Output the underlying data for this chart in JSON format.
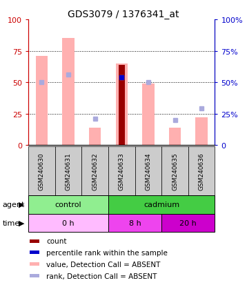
{
  "title": "GDS3079 / 1376341_at",
  "samples": [
    "GSM240630",
    "GSM240631",
    "GSM240632",
    "GSM240633",
    "GSM240634",
    "GSM240635",
    "GSM240636"
  ],
  "pink_bar_values": [
    71,
    85,
    14,
    65,
    49,
    14,
    22
  ],
  "light_blue_rank": [
    50,
    56,
    21,
    54,
    50,
    20,
    29
  ],
  "dark_red_count": [
    null,
    null,
    null,
    64,
    null,
    null,
    null
  ],
  "blue_percentile": [
    null,
    null,
    null,
    54,
    null,
    null,
    null
  ],
  "ylim": [
    0,
    100
  ],
  "yticks": [
    0,
    25,
    50,
    75,
    100
  ],
  "agent_groups": [
    {
      "label": "control",
      "start": 0,
      "end": 3,
      "color": "#90ee90"
    },
    {
      "label": "cadmium",
      "start": 3,
      "end": 7,
      "color": "#44cc44"
    }
  ],
  "time_groups": [
    {
      "label": "0 h",
      "start": 0,
      "end": 3,
      "color": "#ffbbff"
    },
    {
      "label": "8 h",
      "start": 3,
      "end": 5,
      "color": "#ee44ee"
    },
    {
      "label": "20 h",
      "start": 5,
      "end": 7,
      "color": "#cc00cc"
    }
  ],
  "color_pink_bar": "#ffb0b0",
  "color_light_blue": "#aaaadd",
  "color_dark_red": "#990000",
  "color_blue": "#0000cc",
  "left_axis_color": "#cc0000",
  "right_axis_color": "#0000cc",
  "bg_color": "#ffffff",
  "plot_bg_color": "#ffffff",
  "xticklabel_bg": "#cccccc",
  "legend_items": [
    {
      "color": "#990000",
      "label": "count"
    },
    {
      "color": "#0000cc",
      "label": "percentile rank within the sample"
    },
    {
      "color": "#ffb0b0",
      "label": "value, Detection Call = ABSENT"
    },
    {
      "color": "#aaaadd",
      "label": "rank, Detection Call = ABSENT"
    }
  ]
}
